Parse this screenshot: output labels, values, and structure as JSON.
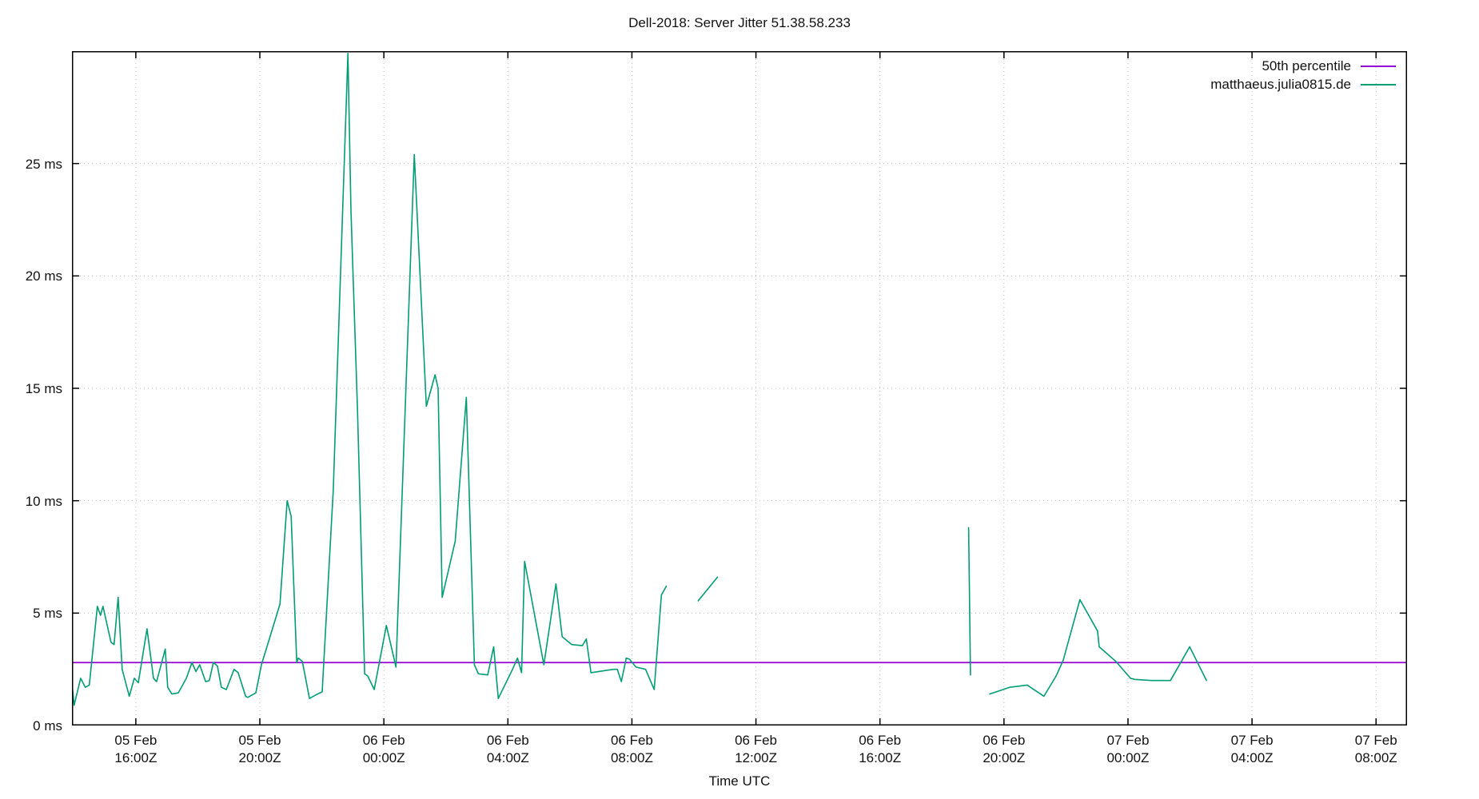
{
  "title": "Dell-2018: Server Jitter 51.38.58.233",
  "xlabel": "Time UTC",
  "legend": [
    {
      "label": "50th percentile",
      "color": "#9400d3"
    },
    {
      "label": "matthaeus.julia0815.de",
      "color": "#009e73"
    }
  ],
  "colors": {
    "percentile_line": "#9400d3",
    "series_line": "#009e73",
    "grid": "#bdbdbd",
    "axis": "#000000",
    "text": "#111111",
    "background": "#ffffff"
  },
  "chart_data": {
    "type": "line",
    "title": "Dell-2018: Server Jitter 51.38.58.233",
    "xlabel": "Time UTC",
    "ylabel": "",
    "x_unit": "hours relative to 05 Feb 16:00Z",
    "y_unit": "ms",
    "xlim": [
      -2.06,
      41.0
    ],
    "ylim": [
      0,
      30
    ],
    "grid": true,
    "legend_position": "top-right-inside",
    "y_ticks": [
      {
        "v": 0,
        "label": "0 ms"
      },
      {
        "v": 5,
        "label": "5 ms"
      },
      {
        "v": 10,
        "label": "10 ms"
      },
      {
        "v": 15,
        "label": "15 ms"
      },
      {
        "v": 20,
        "label": "20 ms"
      },
      {
        "v": 25,
        "label": "25 ms"
      }
    ],
    "x_ticks": [
      {
        "t": 0,
        "line1": "05 Feb",
        "line2": "16:00Z"
      },
      {
        "t": 4,
        "line1": "05 Feb",
        "line2": "20:00Z"
      },
      {
        "t": 8,
        "line1": "06 Feb",
        "line2": "00:00Z"
      },
      {
        "t": 12,
        "line1": "06 Feb",
        "line2": "04:00Z"
      },
      {
        "t": 16,
        "line1": "06 Feb",
        "line2": "08:00Z"
      },
      {
        "t": 20,
        "line1": "06 Feb",
        "line2": "12:00Z"
      },
      {
        "t": 24,
        "line1": "06 Feb",
        "line2": "16:00Z"
      },
      {
        "t": 28,
        "line1": "06 Feb",
        "line2": "20:00Z"
      },
      {
        "t": 32,
        "line1": "07 Feb",
        "line2": "00:00Z"
      },
      {
        "t": 36,
        "line1": "07 Feb",
        "line2": "04:00Z"
      },
      {
        "t": 40,
        "line1": "07 Feb",
        "line2": "08:00Z"
      }
    ],
    "series": [
      {
        "name": "50th percentile",
        "type": "hline",
        "color": "#9400d3",
        "value": 2.8
      },
      {
        "name": "matthaeus.julia0815.de",
        "type": "line",
        "color": "#009e73",
        "segments": [
          [
            [
              -2.06,
              1.9
            ],
            [
              -1.99,
              0.9
            ],
            [
              -1.78,
              2.1
            ],
            [
              -1.63,
              1.7
            ],
            [
              -1.5,
              1.8
            ],
            [
              -1.24,
              5.3
            ],
            [
              -1.14,
              4.9
            ],
            [
              -1.06,
              5.3
            ],
            [
              -0.8,
              3.7
            ],
            [
              -0.7,
              3.6
            ],
            [
              -0.57,
              5.7
            ],
            [
              -0.44,
              2.5
            ],
            [
              -0.21,
              1.3
            ],
            [
              -0.05,
              2.1
            ],
            [
              0.08,
              1.9
            ],
            [
              0.36,
              4.3
            ],
            [
              0.57,
              2.1
            ],
            [
              0.67,
              1.95
            ],
            [
              0.95,
              3.4
            ],
            [
              1.03,
              1.7
            ],
            [
              1.16,
              1.4
            ],
            [
              1.37,
              1.45
            ],
            [
              1.63,
              2.1
            ],
            [
              1.81,
              2.8
            ],
            [
              1.94,
              2.4
            ],
            [
              2.06,
              2.7
            ],
            [
              2.25,
              1.95
            ],
            [
              2.37,
              2.0
            ],
            [
              2.5,
              2.8
            ],
            [
              2.63,
              2.65
            ],
            [
              2.76,
              1.7
            ],
            [
              2.92,
              1.6
            ],
            [
              3.17,
              2.5
            ],
            [
              3.3,
              2.35
            ],
            [
              3.54,
              1.3
            ],
            [
              3.61,
              1.25
            ],
            [
              3.87,
              1.45
            ],
            [
              4.05,
              2.7
            ],
            [
              4.34,
              4.0
            ],
            [
              4.65,
              5.4
            ],
            [
              4.88,
              10.0
            ],
            [
              5.01,
              9.3
            ],
            [
              5.19,
              2.8
            ],
            [
              5.24,
              3.0
            ],
            [
              5.37,
              2.85
            ],
            [
              5.6,
              1.2
            ],
            [
              5.86,
              1.4
            ],
            [
              6.01,
              1.5
            ],
            [
              6.37,
              10.5
            ],
            [
              6.84,
              29.9
            ],
            [
              6.94,
              22.9
            ],
            [
              7.15,
              14.0
            ],
            [
              7.38,
              2.3
            ],
            [
              7.48,
              2.2
            ],
            [
              7.69,
              1.6
            ],
            [
              8.08,
              4.45
            ],
            [
              8.39,
              2.6
            ],
            [
              8.98,
              25.4
            ],
            [
              9.37,
              14.2
            ],
            [
              9.65,
              15.6
            ],
            [
              9.75,
              15.0
            ],
            [
              9.88,
              5.7
            ],
            [
              10.3,
              8.2
            ],
            [
              10.66,
              14.6
            ],
            [
              10.92,
              2.7
            ],
            [
              11.05,
              2.3
            ],
            [
              11.35,
              2.25
            ],
            [
              11.54,
              3.5
            ],
            [
              11.69,
              1.2
            ],
            [
              12.15,
              2.5
            ],
            [
              12.31,
              3.0
            ],
            [
              12.44,
              2.35
            ],
            [
              12.54,
              7.3
            ],
            [
              13.16,
              2.7
            ],
            [
              13.55,
              6.3
            ],
            [
              13.75,
              3.95
            ],
            [
              14.06,
              3.6
            ],
            [
              14.4,
              3.55
            ],
            [
              14.53,
              3.85
            ],
            [
              14.68,
              2.35
            ],
            [
              15.41,
              2.5
            ],
            [
              15.53,
              2.5
            ],
            [
              15.66,
              1.95
            ],
            [
              15.82,
              3.0
            ],
            [
              15.92,
              2.95
            ],
            [
              16.13,
              2.6
            ],
            [
              16.44,
              2.5
            ],
            [
              16.72,
              1.6
            ],
            [
              16.95,
              5.8
            ],
            [
              17.11,
              6.2
            ]
          ],
          [
            [
              18.14,
              5.55
            ],
            [
              18.76,
              6.6
            ]
          ],
          [
            [
              26.86,
              8.8
            ],
            [
              26.92,
              2.25
            ]
          ],
          [
            [
              27.54,
              1.4
            ],
            [
              28.18,
              1.7
            ],
            [
              28.75,
              1.8
            ],
            [
              29.29,
              1.3
            ],
            [
              29.68,
              2.2
            ],
            [
              29.91,
              2.9
            ],
            [
              30.45,
              5.6
            ],
            [
              31.02,
              4.2
            ],
            [
              31.07,
              3.5
            ],
            [
              31.61,
              2.85
            ],
            [
              32.08,
              2.1
            ],
            [
              32.21,
              2.05
            ],
            [
              32.77,
              2.0
            ],
            [
              33.37,
              2.0
            ],
            [
              33.99,
              3.5
            ],
            [
              34.53,
              2.0
            ]
          ]
        ]
      }
    ]
  }
}
